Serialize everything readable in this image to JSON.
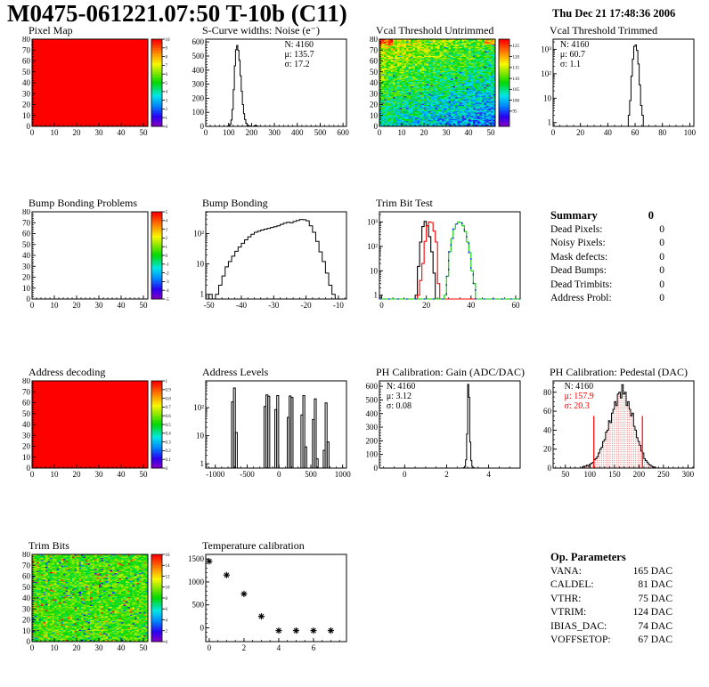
{
  "header": {
    "title": "M0475-061221.07:50 T-10b (C11)",
    "timestamp": "Thu Dec 21 17:48:36 2006"
  },
  "summary": {
    "title": "Summary",
    "total": "0",
    "rows": [
      {
        "label": "Dead Pixels:",
        "value": "0"
      },
      {
        "label": "Noisy Pixels:",
        "value": "0"
      },
      {
        "label": "Mask defects:",
        "value": "0"
      },
      {
        "label": "Dead Bumps:",
        "value": "0"
      },
      {
        "label": "Dead Trimbits:",
        "value": "0"
      },
      {
        "label": "Address Probl:",
        "value": "0"
      }
    ]
  },
  "op_parameters": {
    "title": "Op. Parameters",
    "rows": [
      {
        "label": "VANA:",
        "value": "165 DAC"
      },
      {
        "label": "CALDEL:",
        "value": "81 DAC"
      },
      {
        "label": "VTHR:",
        "value": "75 DAC"
      },
      {
        "label": "VTRIM:",
        "value": "124 DAC"
      },
      {
        "label": "IBIAS_DAC:",
        "value": "74 DAC"
      },
      {
        "label": "VOFFSETOP:",
        "value": "67 DAC"
      }
    ]
  },
  "chart_data": [
    {
      "name": "pixel-map",
      "title": "Pixel Map",
      "type": "heatmap-uniform",
      "xlim": [
        0,
        52
      ],
      "ylim": [
        0,
        80
      ],
      "xticks": [
        0,
        10,
        20,
        30,
        40,
        50
      ],
      "yticks": [
        0,
        10,
        20,
        30,
        40,
        50,
        60,
        70,
        80
      ],
      "xminor": 5,
      "yminor": 5,
      "fill_value": 10,
      "colorbar": {
        "min": 0,
        "max": 10,
        "ticks": [
          10,
          9,
          8,
          7,
          6,
          5,
          4,
          3,
          2,
          1,
          0
        ]
      }
    },
    {
      "name": "scurve-noise",
      "title": "S-Curve widths: Noise (e⁻)",
      "type": "hist",
      "xlim": [
        0,
        615
      ],
      "ylim": [
        0,
        620
      ],
      "xticks": [
        0,
        100,
        200,
        300,
        400,
        500,
        600
      ],
      "yticks": [
        0,
        100,
        200,
        300,
        400,
        500,
        600
      ],
      "xminor": 5,
      "yminor": 5,
      "bins": {
        "x0": 95,
        "dx": 5,
        "counts": [
          2,
          6,
          15,
          45,
          120,
          260,
          430,
          545,
          575,
          540,
          470,
          360,
          250,
          155,
          90,
          48,
          22,
          10,
          5,
          2,
          1,
          0,
          0,
          3,
          8,
          4,
          1
        ]
      },
      "stats": {
        "x": 0.56,
        "lines": [
          {
            "t": "N: 4160"
          },
          {
            "t": "μ: 135.7"
          },
          {
            "t": "σ: 17.2"
          }
        ]
      }
    },
    {
      "name": "vcal-threshold-untrimmed",
      "title": "Vcal Threshold Untrimmed",
      "type": "heatmap-noise",
      "model": "vcal",
      "seed": 1234567,
      "xlim": [
        0,
        52
      ],
      "ylim": [
        0,
        80
      ],
      "xticks": [
        0,
        10,
        20,
        30,
        40,
        50
      ],
      "yticks": [
        0,
        10,
        20,
        30,
        40,
        50,
        60,
        70,
        80
      ],
      "xminor": 5,
      "yminor": 5,
      "colorbar": {
        "min": 88,
        "max": 128,
        "ticks": [
          125,
          120,
          115,
          110,
          105,
          100,
          95
        ]
      }
    },
    {
      "name": "vcal-threshold-trimmed",
      "title": "Vcal Threshold Trimmed",
      "type": "hist",
      "xlim": [
        0,
        103
      ],
      "ylog": [
        0.7,
        2600
      ],
      "xticks": [
        0,
        20,
        40,
        60,
        80,
        100
      ],
      "xminor": 4,
      "bins": {
        "x0": 55,
        "dx": 1,
        "counts": [
          2,
          8,
          80,
          400,
          1300,
          1500,
          900,
          250,
          35,
          5,
          2
        ]
      },
      "stats": {
        "x": 0.05,
        "lines": [
          {
            "t": "N: 4160"
          },
          {
            "t": "μ: 60.7"
          },
          {
            "t": "σ:  1.1"
          }
        ]
      }
    },
    {
      "name": "bump-bonding-problems",
      "title": "Bump Bonding Problems",
      "type": "heatmap-empty",
      "xlim": [
        0,
        52
      ],
      "ylim": [
        0,
        80
      ],
      "xticks": [
        0,
        10,
        20,
        30,
        40,
        50
      ],
      "yticks": [
        0,
        10,
        20,
        30,
        40,
        50,
        60,
        70,
        80
      ],
      "xminor": 5,
      "yminor": 5,
      "colorbar": {
        "min": -5,
        "max": 5,
        "ticks": [
          5,
          4,
          3,
          2,
          1,
          0,
          -1,
          -2,
          -3,
          -4,
          -5
        ]
      }
    },
    {
      "name": "bump-bonding",
      "title": "Bump Bonding",
      "type": "hist",
      "xlim": [
        -51,
        -7.5
      ],
      "ylog": [
        0.7,
        520
      ],
      "xticks": [
        -50,
        -40,
        -30,
        -20,
        -10
      ],
      "xminor": 5,
      "bins": {
        "x0": -50,
        "dx": 1,
        "counts": [
          1,
          0,
          1,
          2,
          4,
          8,
          12,
          18,
          26,
          36,
          48,
          62,
          78,
          95,
          110,
          120,
          130,
          140,
          148,
          158,
          168,
          180,
          200,
          220,
          235,
          225,
          250,
          270,
          290,
          285,
          262,
          180,
          110,
          55,
          25,
          12,
          5,
          2,
          1,
          0
        ]
      }
    },
    {
      "name": "trim-bit-test",
      "title": "Trim Bit Test",
      "type": "multihist",
      "xlim": [
        -1,
        62
      ],
      "ylog": [
        0.7,
        2600
      ],
      "xticks": [
        0,
        20,
        40,
        60
      ],
      "xminor": 4,
      "series": [
        {
          "color": "#000000",
          "x0": 15,
          "dx": 1,
          "counts": [
            1,
            15,
            150,
            650,
            1050,
            700,
            250,
            60,
            8
          ]
        },
        {
          "color": "#ff0000",
          "x0": 16,
          "dx": 1,
          "counts": [
            1,
            4,
            20,
            160,
            700,
            1000,
            950,
            420,
            150,
            3
          ]
        },
        {
          "color": "#00cc00",
          "overlay_dash": "#0000ff",
          "x0": 28,
          "dx": 1,
          "counts": [
            1,
            6,
            60,
            210,
            520,
            820,
            1000,
            950,
            700,
            400,
            150,
            55,
            10,
            3
          ]
        }
      ]
    },
    {
      "name": "address-decoding",
      "title": "Address decoding",
      "type": "heatmap-uniform",
      "xlim": [
        0,
        52
      ],
      "ylim": [
        0,
        80
      ],
      "xticks": [
        0,
        10,
        20,
        30,
        40,
        50
      ],
      "yticks": [
        0,
        10,
        20,
        30,
        40,
        50,
        60,
        70,
        80
      ],
      "xminor": 5,
      "yminor": 5,
      "fill_value": 1,
      "colorbar": {
        "min": 0,
        "max": 1,
        "ticks": [
          1,
          0.9,
          0.8,
          0.7,
          0.6,
          0.5,
          0.4,
          0.3,
          0.2,
          0.1,
          0
        ]
      }
    },
    {
      "name": "address-levels",
      "title": "Address Levels",
      "type": "bars",
      "xlim": [
        -1150,
        1060
      ],
      "ylog": [
        0.7,
        900
      ],
      "xticks": [
        -1000,
        -500,
        0,
        500,
        1000
      ],
      "xminor": 5,
      "bars": [
        [
          -745,
          30,
          160
        ],
        [
          -715,
          30,
          500
        ],
        [
          -685,
          30,
          13
        ],
        [
          -235,
          30,
          110
        ],
        [
          -205,
          30,
          285
        ],
        [
          -175,
          30,
          255
        ],
        [
          -65,
          30,
          85
        ],
        [
          -35,
          30,
          270
        ],
        [
          130,
          30,
          45
        ],
        [
          160,
          30,
          260
        ],
        [
          190,
          30,
          230
        ],
        [
          345,
          30,
          55
        ],
        [
          375,
          30,
          270
        ],
        [
          405,
          30,
          4
        ],
        [
          525,
          30,
          38
        ],
        [
          555,
          30,
          205
        ],
        [
          585,
          30,
          1.5
        ],
        [
          695,
          30,
          3
        ],
        [
          725,
          30,
          148
        ],
        [
          755,
          30,
          6
        ]
      ]
    },
    {
      "name": "ph-calibration-gain",
      "title": "PH Calibration: Gain (ADC/DAC)",
      "type": "hist",
      "xlim": [
        -1.2,
        5.5
      ],
      "ylim": [
        0,
        640
      ],
      "xticks": [
        0,
        2,
        4
      ],
      "yticks": [
        0,
        100,
        200,
        300,
        400,
        500,
        600
      ],
      "xminor": 4,
      "yminor": 5,
      "bins": {
        "x0": 2.8,
        "dx": 0.05,
        "counts": [
          3,
          12,
          60,
          250,
          615,
          520,
          190,
          55,
          12,
          3
        ]
      },
      "stats": {
        "x": 0.05,
        "lines": [
          {
            "t": "N: 4160"
          },
          {
            "t": "μ: 3.12"
          },
          {
            "t": "σ: 0.08"
          }
        ]
      }
    },
    {
      "name": "ph-calibration-pedestal",
      "title": "PH Calibration: Pedestal (DAC)",
      "type": "hist",
      "xlim": [
        25,
        312
      ],
      "ylim": [
        0,
        92
      ],
      "xticks": [
        50,
        100,
        150,
        200,
        250,
        300
      ],
      "yticks": [
        0,
        20,
        40,
        60,
        80
      ],
      "xminor": 5,
      "yminor": 4,
      "fill": "dots",
      "bins": {
        "x0": 84,
        "dx": 3,
        "counts": [
          1,
          2,
          2,
          3,
          2,
          4,
          5,
          6,
          9,
          10,
          12,
          16,
          20,
          22,
          28,
          30,
          38,
          40,
          50,
          48,
          58,
          62,
          70,
          66,
          78,
          80,
          74,
          88,
          78,
          80,
          66,
          70,
          62,
          55,
          58,
          44,
          40,
          32,
          28,
          24,
          18,
          16,
          10,
          8,
          6,
          4,
          3,
          2,
          1,
          1
        ]
      },
      "vlines": [
        {
          "x": 108,
          "y2": 55,
          "color": "#ff0000"
        },
        {
          "x": 207,
          "y2": 55,
          "color": "#ff0000"
        }
      ],
      "stats": {
        "x": 0.08,
        "lines": [
          {
            "t": "N: 4160",
            "c": "#000000"
          },
          {
            "t": "μ: 157.9",
            "c": "#ff0000"
          },
          {
            "t": "σ: 20.3",
            "c": "#ff0000"
          }
        ]
      }
    },
    {
      "name": "trim-bits",
      "title": "Trim Bits",
      "type": "heatmap-noise",
      "model": "trim",
      "seed": 424242,
      "xlim": [
        0,
        52
      ],
      "ylim": [
        0,
        80
      ],
      "xticks": [
        0,
        10,
        20,
        30,
        40,
        50
      ],
      "yticks": [
        0,
        10,
        20,
        30,
        40,
        50,
        60,
        70,
        80
      ],
      "xminor": 5,
      "yminor": 5,
      "colorbar": {
        "min": 0,
        "max": 16,
        "ticks": [
          16,
          14,
          12,
          10,
          8,
          6,
          4,
          2,
          0
        ]
      }
    },
    {
      "name": "temperature-calibration",
      "title": "Temperature calibration",
      "type": "scatter",
      "xlim": [
        -0.2,
        7.9
      ],
      "ylim": [
        -300,
        1600
      ],
      "xticks": [
        0,
        2,
        4,
        6
      ],
      "yticks": [
        0,
        500,
        1000,
        1500
      ],
      "xminor": 4,
      "yminor": 5,
      "points": [
        [
          0,
          1450
        ],
        [
          1,
          1150
        ],
        [
          2,
          740
        ],
        [
          3,
          250
        ],
        [
          4,
          -60
        ],
        [
          5,
          -60
        ],
        [
          6,
          -60
        ],
        [
          7,
          -60
        ]
      ]
    }
  ]
}
